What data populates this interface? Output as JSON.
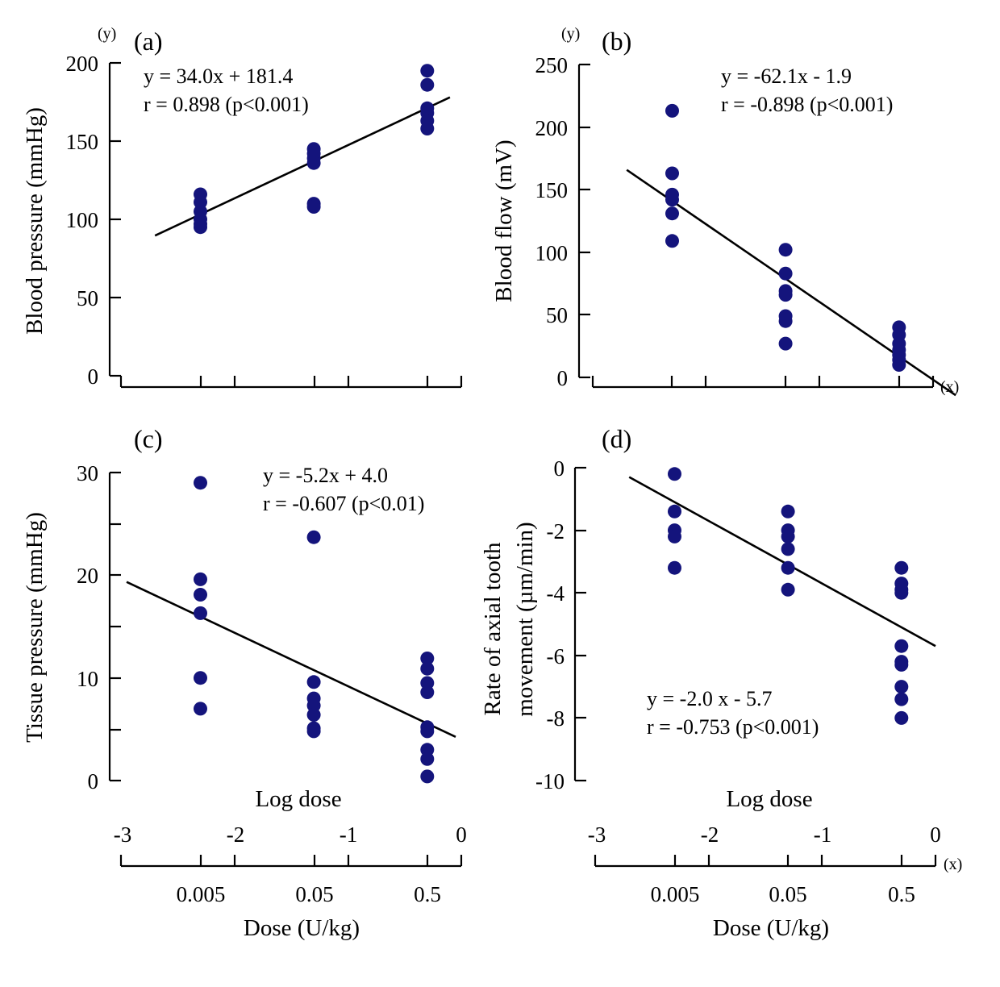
{
  "chart_data": [
    {
      "type": "scatter",
      "panel_label": "(a)",
      "xlabel": "",
      "ylabel": "Blood pressure (mmHg)",
      "y_marker": "(y)",
      "x_marker": "",
      "ylim": [
        0,
        200
      ],
      "yticks": [
        "0",
        "50",
        "100",
        "150",
        "200"
      ],
      "xlim": [
        -3,
        0
      ],
      "fit": {
        "slope": 34.0,
        "intercept": 181.4,
        "x_range": [
          -2.7,
          -0.1
        ]
      },
      "equation": "y =  34.0x + 181.4",
      "correlation": "r = 0.898 (p<0.001)",
      "points": [
        {
          "x": -2.3,
          "y": 116
        },
        {
          "x": -2.3,
          "y": 111
        },
        {
          "x": -2.3,
          "y": 105
        },
        {
          "x": -2.3,
          "y": 100
        },
        {
          "x": -2.3,
          "y": 97
        },
        {
          "x": -2.3,
          "y": 95
        },
        {
          "x": -1.3,
          "y": 145
        },
        {
          "x": -1.3,
          "y": 142
        },
        {
          "x": -1.3,
          "y": 139
        },
        {
          "x": -1.3,
          "y": 136
        },
        {
          "x": -1.3,
          "y": 110
        },
        {
          "x": -1.3,
          "y": 108
        },
        {
          "x": -0.3,
          "y": 195
        },
        {
          "x": -0.3,
          "y": 186
        },
        {
          "x": -0.3,
          "y": 171
        },
        {
          "x": -0.3,
          "y": 168
        },
        {
          "x": -0.3,
          "y": 163
        },
        {
          "x": -0.3,
          "y": 158
        }
      ]
    },
    {
      "type": "scatter",
      "panel_label": "(b)",
      "xlabel": "",
      "ylabel": "Blood flow (mV)",
      "y_marker": "(y)",
      "x_marker": "(x)",
      "ylim": [
        0,
        250
      ],
      "yticks": [
        "0",
        "50",
        "100",
        "150",
        "200",
        "250"
      ],
      "xlim": [
        -3,
        0
      ],
      "fit": {
        "slope": -62.1,
        "intercept": -1.9,
        "x_range": [
          -2.7,
          0.2
        ]
      },
      "equation": "y = -62.1x - 1.9",
      "correlation": "r = -0.898 (p<0.001)",
      "points": [
        {
          "x": -2.3,
          "y": 213
        },
        {
          "x": -2.3,
          "y": 163
        },
        {
          "x": -2.3,
          "y": 146
        },
        {
          "x": -2.3,
          "y": 142
        },
        {
          "x": -2.3,
          "y": 131
        },
        {
          "x": -2.3,
          "y": 109
        },
        {
          "x": -1.3,
          "y": 102
        },
        {
          "x": -1.3,
          "y": 83
        },
        {
          "x": -1.3,
          "y": 69
        },
        {
          "x": -1.3,
          "y": 66
        },
        {
          "x": -1.3,
          "y": 49
        },
        {
          "x": -1.3,
          "y": 45
        },
        {
          "x": -1.3,
          "y": 27
        },
        {
          "x": -0.3,
          "y": 40
        },
        {
          "x": -0.3,
          "y": 34
        },
        {
          "x": -0.3,
          "y": 27
        },
        {
          "x": -0.3,
          "y": 22
        },
        {
          "x": -0.3,
          "y": 18
        },
        {
          "x": -0.3,
          "y": 14
        },
        {
          "x": -0.3,
          "y": 10
        }
      ]
    },
    {
      "type": "scatter",
      "panel_label": "(c)",
      "xlabel": "Log dose",
      "ylabel": "Tissue pressure (mmHg)",
      "y_marker": "",
      "x_marker": "",
      "ylim": [
        0,
        30
      ],
      "yticks": [
        "0",
        "10",
        "20",
        "30"
      ],
      "xlim": [
        -3,
        0
      ],
      "xticks": [
        "-3",
        "-2",
        "-1",
        "0"
      ],
      "dose_ticks": [
        "0.005",
        "0.05",
        "0.5"
      ],
      "dose_label": "Dose (U/kg)",
      "fit": {
        "slope": -5.2,
        "intercept": 4.0,
        "x_range": [
          -2.95,
          -0.05
        ]
      },
      "equation": "y = -5.2x + 4.0",
      "correlation": "r = -0.607 (p<0.01)",
      "points": [
        {
          "x": -2.3,
          "y": 29.0
        },
        {
          "x": -2.3,
          "y": 19.6
        },
        {
          "x": -2.3,
          "y": 18.1
        },
        {
          "x": -2.3,
          "y": 16.3
        },
        {
          "x": -2.3,
          "y": 10.0
        },
        {
          "x": -2.3,
          "y": 7.0
        },
        {
          "x": -1.3,
          "y": 23.7
        },
        {
          "x": -1.3,
          "y": 9.6
        },
        {
          "x": -1.3,
          "y": 8.0
        },
        {
          "x": -1.3,
          "y": 7.3
        },
        {
          "x": -1.3,
          "y": 6.4
        },
        {
          "x": -1.3,
          "y": 5.1
        },
        {
          "x": -1.3,
          "y": 4.8
        },
        {
          "x": -0.3,
          "y": 11.9
        },
        {
          "x": -0.3,
          "y": 10.9
        },
        {
          "x": -0.3,
          "y": 9.5
        },
        {
          "x": -0.3,
          "y": 8.6
        },
        {
          "x": -0.3,
          "y": 5.2
        },
        {
          "x": -0.3,
          "y": 4.8
        },
        {
          "x": -0.3,
          "y": 3.0
        },
        {
          "x": -0.3,
          "y": 2.1
        },
        {
          "x": -0.3,
          "y": 0.4
        }
      ]
    },
    {
      "type": "scatter",
      "panel_label": "(d)",
      "xlabel": "Log dose",
      "ylabel_lines": [
        "Rate of axial tooth",
        "movement  (µm/min)"
      ],
      "y_marker": "",
      "x_marker": "(x)",
      "ylim": [
        -10,
        0
      ],
      "yticks": [
        "-10",
        "-8",
        "-6",
        "-4",
        "-2",
        "0"
      ],
      "xlim": [
        -3,
        0
      ],
      "xticks": [
        "-3",
        "-2",
        "-1",
        "0"
      ],
      "dose_ticks": [
        "0.005",
        "0.05",
        "0.5"
      ],
      "dose_label": "Dose (U/kg)",
      "fit": {
        "slope": -2.0,
        "intercept": -5.7,
        "x_range": [
          -2.7,
          0.0
        ]
      },
      "equation": "y = -2.0 x - 5.7",
      "correlation": "r = -0.753 (p<0.001)",
      "points": [
        {
          "x": -2.3,
          "y": -0.2
        },
        {
          "x": -2.3,
          "y": -1.4
        },
        {
          "x": -2.3,
          "y": -2.0
        },
        {
          "x": -2.3,
          "y": -2.2
        },
        {
          "x": -2.3,
          "y": -3.2
        },
        {
          "x": -1.3,
          "y": -1.4
        },
        {
          "x": -1.3,
          "y": -2.0
        },
        {
          "x": -1.3,
          "y": -2.2
        },
        {
          "x": -1.3,
          "y": -2.6
        },
        {
          "x": -1.3,
          "y": -3.2
        },
        {
          "x": -1.3,
          "y": -3.9
        },
        {
          "x": -0.3,
          "y": -3.2
        },
        {
          "x": -0.3,
          "y": -3.7
        },
        {
          "x": -0.3,
          "y": -3.9
        },
        {
          "x": -0.3,
          "y": -4.0
        },
        {
          "x": -0.3,
          "y": -5.7
        },
        {
          "x": -0.3,
          "y": -6.2
        },
        {
          "x": -0.3,
          "y": -6.3
        },
        {
          "x": -0.3,
          "y": -7.0
        },
        {
          "x": -0.3,
          "y": -7.4
        },
        {
          "x": -0.3,
          "y": -8.0
        }
      ]
    }
  ]
}
